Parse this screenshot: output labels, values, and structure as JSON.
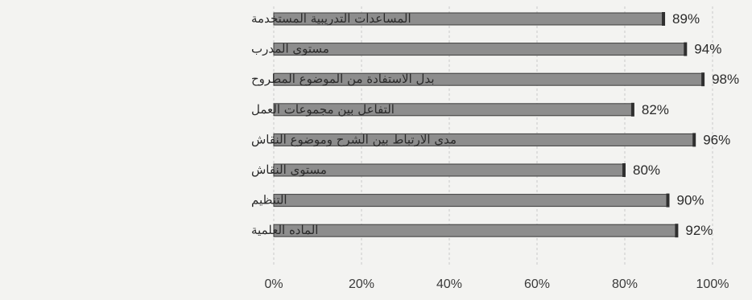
{
  "chart_data": {
    "type": "bar",
    "orientation": "horizontal",
    "categories": [
      "المساعدات التدريبية المستخدمة",
      "مستوى المدرب",
      "بدل الاستفادة من الموضوع المطروح",
      "التفاعل بين مجموعات العمل",
      "مدى الارتباط بين الشرح وموضوع النقاش",
      "مستوى النقاش",
      "التنظيم",
      "الماده العلمية"
    ],
    "values": [
      89,
      94,
      98,
      82,
      96,
      80,
      90,
      92
    ],
    "value_labels": [
      "89%",
      "94%",
      "98%",
      "82%",
      "96%",
      "80%",
      "90%",
      "92%"
    ],
    "xlim": [
      0,
      100
    ],
    "x_ticks": [
      "0%",
      "20%",
      "40%",
      "60%",
      "80%",
      "100%"
    ],
    "grid": "vertical dashed",
    "colors": {
      "bar": "#8d8d8d",
      "bar_edge": "#3c3c3c",
      "grid": "#c9c9c9",
      "background": "#f3f3f1"
    }
  }
}
